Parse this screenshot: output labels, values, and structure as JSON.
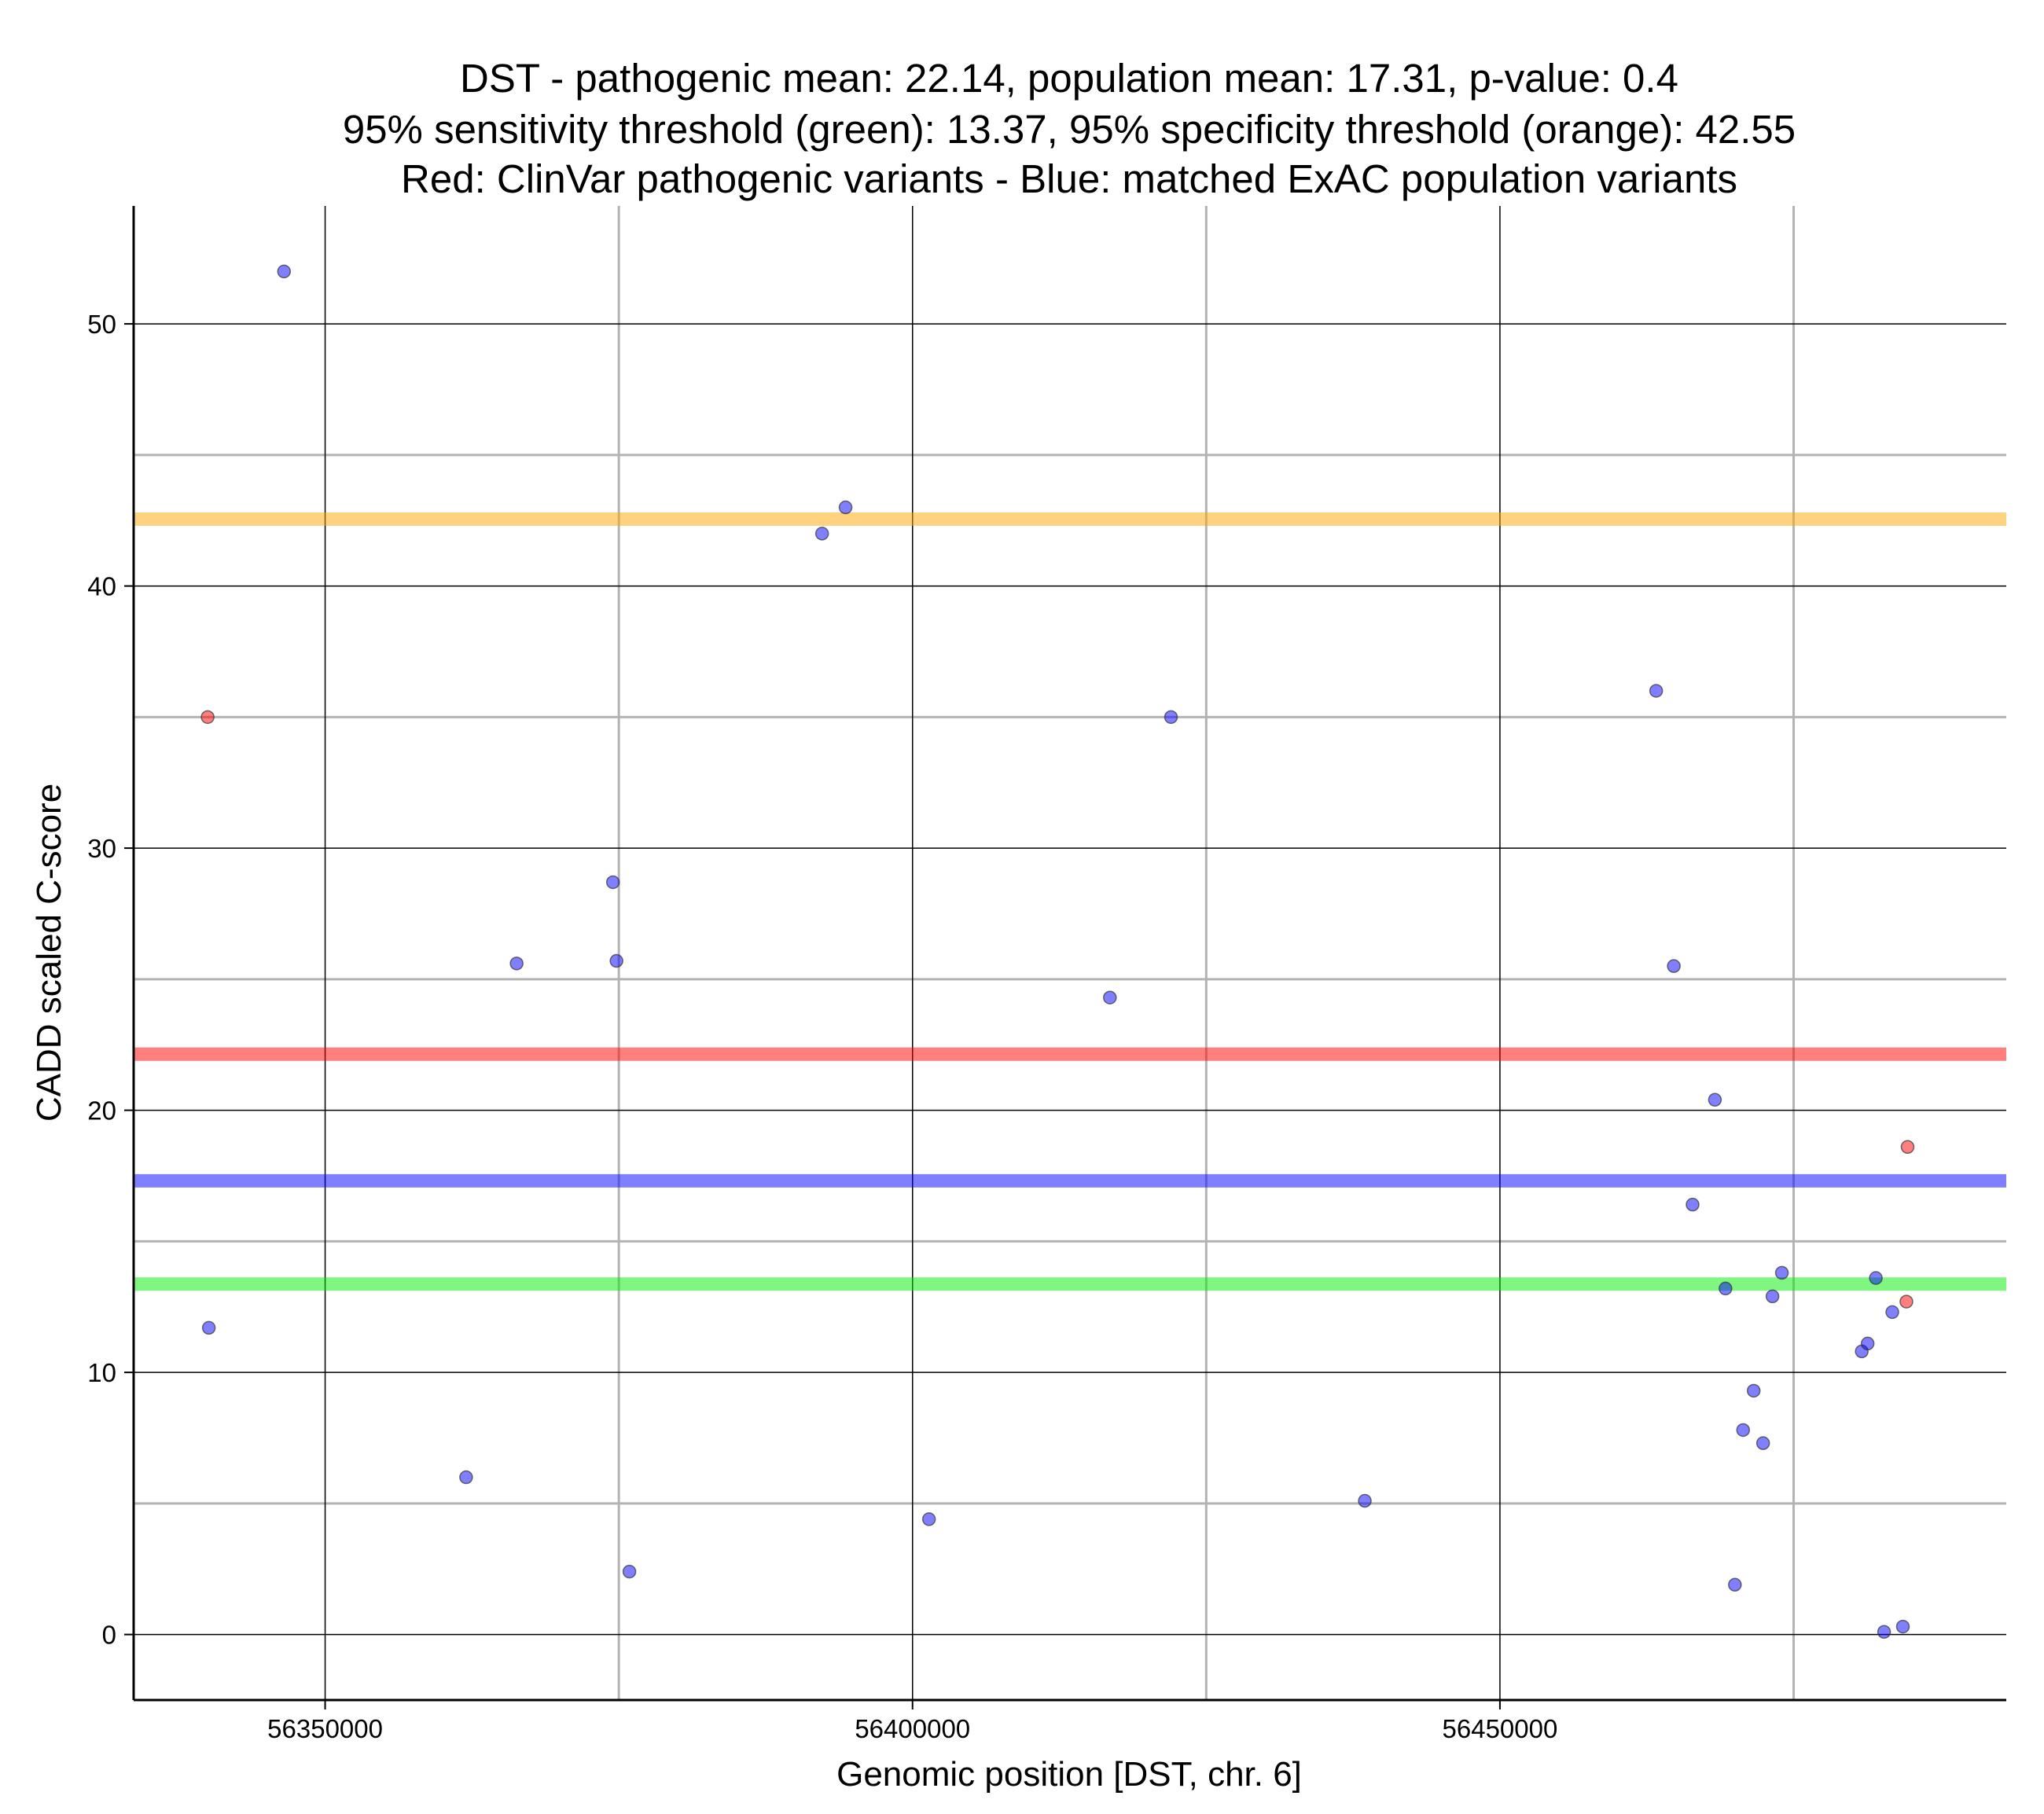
{
  "chart_data": {
    "type": "scatter",
    "title": [
      "DST - pathogenic mean: 22.14, population mean: 17.31, p-value: 0.4",
      "95% sensitivity threshold (green): 13.37, 95% specificity threshold (orange): 42.55",
      "Red: ClinVar pathogenic variants - Blue: matched ExAC population variants"
    ],
    "xlabel": "Genomic position [DST, chr. 6]",
    "ylabel": "CADD scaled C-score",
    "xlim": [
      56333700,
      56493100
    ],
    "ylim": [
      -2.5,
      54.5
    ],
    "x_major_ticks": [
      56350000,
      56400000,
      56450000
    ],
    "x_major_tick_labels": [
      "56350000",
      "56400000",
      "56450000"
    ],
    "x_minor_gridlines": [
      56375000,
      56425000,
      56475000
    ],
    "y_major_ticks": [
      0,
      10,
      20,
      30,
      40,
      50
    ],
    "y_major_tick_labels": [
      "0",
      "10",
      "20",
      "30",
      "40",
      "50"
    ],
    "y_minor_gridlines": [
      5,
      15,
      25,
      35,
      45
    ],
    "grid": true,
    "colors": {
      "pathogenic": "#ff0000",
      "population": "#0000ff",
      "sensitivity": "#00ee00",
      "specificity": "#ffa500",
      "point_edge": "#333333",
      "grid_major": "#000000",
      "grid_minor": "#b3b3b3"
    },
    "reference_lines": [
      {
        "name": "specificity-threshold",
        "label": "95% specificity threshold (orange)",
        "value": 42.55,
        "color": "#ffa500"
      },
      {
        "name": "pathogenic-mean",
        "label": "pathogenic mean",
        "value": 22.14,
        "color": "#ff0000"
      },
      {
        "name": "population-mean",
        "label": "population mean",
        "value": 17.31,
        "color": "#0000ff"
      },
      {
        "name": "sensitivity-threshold",
        "label": "95% sensitivity threshold (green)",
        "value": 13.37,
        "color": "#00ee00"
      }
    ],
    "series": [
      {
        "name": "ClinVar pathogenic variants",
        "color": "#ff0000",
        "points": [
          {
            "x": 56340000,
            "y": 35.0
          },
          {
            "x": 56484700,
            "y": 18.6
          },
          {
            "x": 56484600,
            "y": 12.7
          }
        ]
      },
      {
        "name": "matched ExAC population variants",
        "color": "#0000ff",
        "points": [
          {
            "x": 56346500,
            "y": 52.0
          },
          {
            "x": 56340100,
            "y": 11.7
          },
          {
            "x": 56362000,
            "y": 6.0
          },
          {
            "x": 56366300,
            "y": 25.6
          },
          {
            "x": 56374500,
            "y": 28.7
          },
          {
            "x": 56374800,
            "y": 25.7
          },
          {
            "x": 56375900,
            "y": 2.4
          },
          {
            "x": 56392300,
            "y": 42.0
          },
          {
            "x": 56394300,
            "y": 43.0
          },
          {
            "x": 56401400,
            "y": 4.4
          },
          {
            "x": 56416800,
            "y": 24.3
          },
          {
            "x": 56422000,
            "y": 35.0
          },
          {
            "x": 56438500,
            "y": 5.1
          },
          {
            "x": 56463300,
            "y": 36.0
          },
          {
            "x": 56464800,
            "y": 25.5
          },
          {
            "x": 56468300,
            "y": 20.4
          },
          {
            "x": 56466400,
            "y": 16.4
          },
          {
            "x": 56469200,
            "y": 13.2
          },
          {
            "x": 56473200,
            "y": 12.9
          },
          {
            "x": 56474000,
            "y": 13.8
          },
          {
            "x": 56471600,
            "y": 9.3
          },
          {
            "x": 56470700,
            "y": 7.8
          },
          {
            "x": 56472400,
            "y": 7.3
          },
          {
            "x": 56470000,
            "y": 1.9
          },
          {
            "x": 56482000,
            "y": 13.6
          },
          {
            "x": 56480800,
            "y": 10.8
          },
          {
            "x": 56481300,
            "y": 11.1
          },
          {
            "x": 56483400,
            "y": 12.3
          },
          {
            "x": 56482700,
            "y": 0.1
          },
          {
            "x": 56484300,
            "y": 0.3
          }
        ]
      }
    ]
  }
}
